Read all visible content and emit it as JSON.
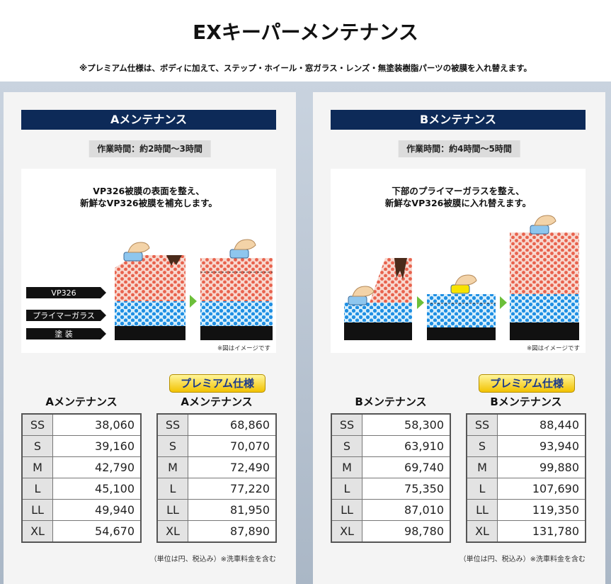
{
  "title": "EXキーパーメンテナンス",
  "note": "※プレミアム仕様は、ボディに加えて、ステップ・ホイール・窓ガラス・レンズ・無塗装樹脂パーツの被膜を入れ替えます。",
  "panels": [
    {
      "heading": "Aメンテナンス",
      "time": "作業時間：約2時間〜3時間",
      "diagram": {
        "caption": [
          "VP326被膜の表面を整え、",
          "新鮮なVP326被膜を補充します。"
        ],
        "layers": [
          "VP326",
          "プライマーガラス",
          "塗 装"
        ],
        "image_note": "※図はイメージです"
      },
      "tables": [
        {
          "title": "Aメンテナンス",
          "rows": [
            [
              "SS",
              "38,060"
            ],
            [
              "S",
              "39,160"
            ],
            [
              "M",
              "42,790"
            ],
            [
              "L",
              "45,100"
            ],
            [
              "LL",
              "49,940"
            ],
            [
              "XL",
              "54,670"
            ]
          ]
        },
        {
          "badge": "プレミアム仕様",
          "title": "Aメンテナンス",
          "rows": [
            [
              "SS",
              "68,860"
            ],
            [
              "S",
              "70,070"
            ],
            [
              "M",
              "72,490"
            ],
            [
              "L",
              "77,220"
            ],
            [
              "LL",
              "81,950"
            ],
            [
              "XL",
              "87,890"
            ]
          ]
        }
      ],
      "footnote": "（単位は円、税込み）※洗車料金を含む"
    },
    {
      "heading": "Bメンテナンス",
      "time": "作業時間：約4時間〜5時間",
      "diagram": {
        "caption": [
          "下部のプライマーガラスを整え、",
          "新鮮なVP326被膜に入れ替えます。"
        ],
        "image_note": "※図はイメージです"
      },
      "tables": [
        {
          "title": "Bメンテナンス",
          "rows": [
            [
              "SS",
              "58,300"
            ],
            [
              "S",
              "63,910"
            ],
            [
              "M",
              "69,740"
            ],
            [
              "L",
              "75,350"
            ],
            [
              "LL",
              "87,010"
            ],
            [
              "XL",
              "98,780"
            ]
          ]
        },
        {
          "badge": "プレミアム仕様",
          "title": "Bメンテナンス",
          "rows": [
            [
              "SS",
              "88,440"
            ],
            [
              "S",
              "93,940"
            ],
            [
              "M",
              "99,880"
            ],
            [
              "L",
              "107,690"
            ],
            [
              "LL",
              "119,350"
            ],
            [
              "XL",
              "131,780"
            ]
          ]
        }
      ],
      "footnote": "（単位は円、税込み）※洗車料金を含む"
    }
  ]
}
